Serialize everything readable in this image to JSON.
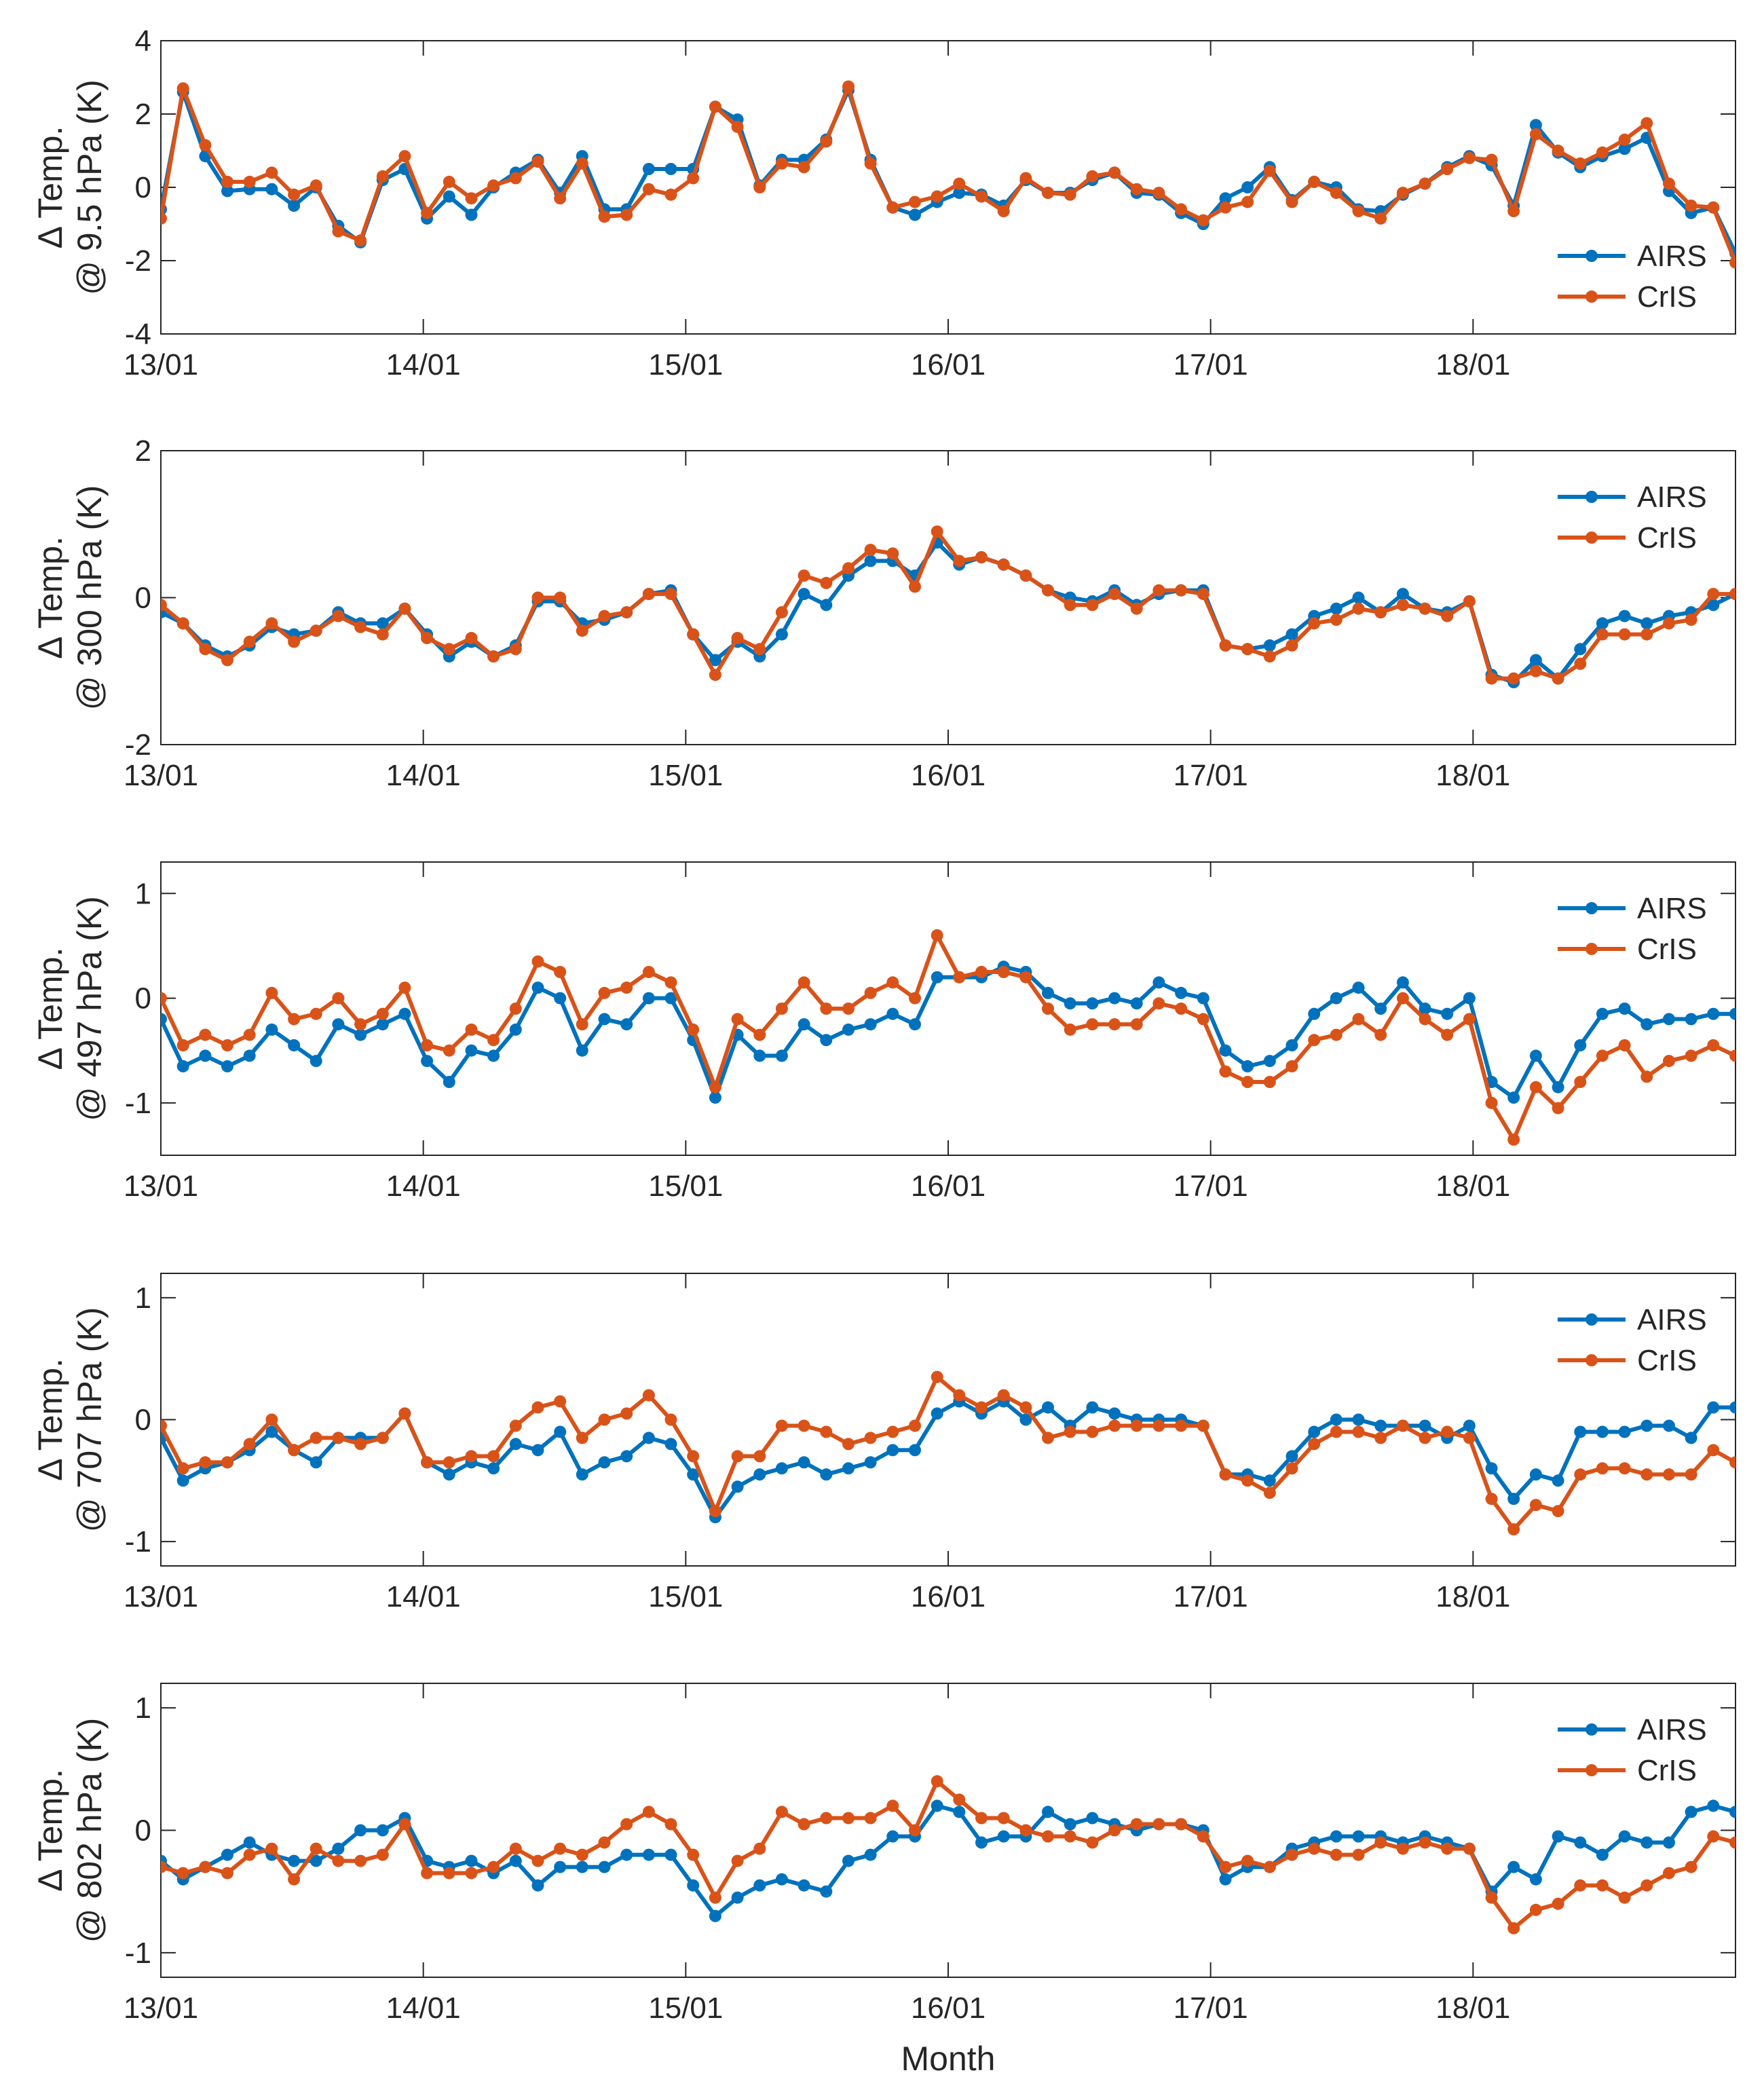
{
  "figure": {
    "xlabel": "Month",
    "series_names": [
      "AIRS",
      "CrIS"
    ],
    "colors": {
      "AIRS": "#0072BD",
      "CrIS": "#D95319",
      "axis": "#262626"
    },
    "x_tick_labels": [
      "13/01",
      "14/01",
      "15/01",
      "16/01",
      "17/01",
      "18/01"
    ],
    "x_tick_months": [
      0,
      12,
      24,
      36,
      48,
      60
    ],
    "x_range": [
      0,
      72
    ]
  },
  "chart_data": [
    {
      "type": "line",
      "title": "",
      "ylabel_line1": "Δ Temp.",
      "ylabel_line2": "@ 9.5 hPa (K)",
      "ylim": [
        -4,
        4
      ],
      "yticks": [
        -4,
        -2,
        0,
        2,
        4
      ],
      "ytick_labels": [
        "-4",
        "-2",
        "0",
        "2",
        "4"
      ],
      "legend": "bottom-right",
      "xlabel": "",
      "series": [
        {
          "name": "AIRS",
          "values": [
            -0.6,
            2.6,
            0.85,
            -0.1,
            -0.05,
            -0.05,
            -0.5,
            0.0,
            -1.05,
            -1.5,
            0.2,
            0.5,
            -0.85,
            -0.25,
            -0.75,
            0.0,
            0.4,
            0.75,
            -0.15,
            0.85,
            -0.6,
            -0.6,
            0.5,
            0.5,
            0.5,
            2.2,
            1.85,
            0.05,
            0.75,
            0.75,
            1.3,
            2.65,
            0.75,
            -0.55,
            -0.75,
            -0.4,
            -0.15,
            -0.2,
            -0.5,
            0.2,
            -0.15,
            -0.15,
            0.2,
            0.4,
            -0.15,
            -0.2,
            -0.7,
            -1.0,
            -0.3,
            0.0,
            0.55,
            -0.35,
            0.15,
            0.0,
            -0.6,
            -0.65,
            -0.2,
            0.1,
            0.55,
            0.85,
            0.6,
            -0.5,
            1.7,
            0.95,
            0.55,
            0.85,
            1.05,
            1.35,
            -0.1,
            -0.7,
            -0.55,
            -1.8
          ]
        },
        {
          "name": "CrIS",
          "values": [
            -0.85,
            2.7,
            1.15,
            0.15,
            0.15,
            0.4,
            -0.2,
            0.05,
            -1.2,
            -1.45,
            0.3,
            0.85,
            -0.7,
            0.15,
            -0.3,
            0.05,
            0.25,
            0.7,
            -0.3,
            0.65,
            -0.8,
            -0.75,
            -0.05,
            -0.2,
            0.25,
            2.2,
            1.65,
            0.0,
            0.65,
            0.55,
            1.25,
            2.75,
            0.65,
            -0.55,
            -0.4,
            -0.25,
            0.1,
            -0.25,
            -0.65,
            0.25,
            -0.15,
            -0.2,
            0.3,
            0.4,
            -0.05,
            -0.15,
            -0.6,
            -0.9,
            -0.55,
            -0.4,
            0.45,
            -0.4,
            0.15,
            -0.15,
            -0.65,
            -0.85,
            -0.15,
            0.1,
            0.5,
            0.8,
            0.75,
            -0.65,
            1.45,
            1.0,
            0.65,
            0.95,
            1.3,
            1.75,
            0.1,
            -0.5,
            -0.55,
            -2.05
          ]
        }
      ]
    },
    {
      "type": "line",
      "title": "",
      "ylabel_line1": "Δ Temp.",
      "ylabel_line2": "@ 300 hPa (K)",
      "ylim": [
        -2,
        2
      ],
      "yticks": [
        -2,
        0,
        2
      ],
      "ytick_labels": [
        "-2",
        "0",
        "2"
      ],
      "legend": "top-right",
      "xlabel": "",
      "series": [
        {
          "name": "AIRS",
          "values": [
            -0.2,
            -0.35,
            -0.65,
            -0.8,
            -0.65,
            -0.4,
            -0.5,
            -0.45,
            -0.2,
            -0.35,
            -0.35,
            -0.15,
            -0.5,
            -0.8,
            -0.6,
            -0.8,
            -0.65,
            -0.05,
            -0.05,
            -0.35,
            -0.3,
            -0.2,
            0.05,
            0.1,
            -0.5,
            -0.85,
            -0.6,
            -0.8,
            -0.5,
            0.05,
            -0.1,
            0.3,
            0.5,
            0.5,
            0.3,
            0.75,
            0.45,
            0.55,
            0.45,
            0.3,
            0.1,
            0.0,
            -0.05,
            0.1,
            -0.1,
            0.05,
            0.1,
            0.1,
            -0.65,
            -0.7,
            -0.65,
            -0.5,
            -0.25,
            -0.15,
            0.0,
            -0.2,
            0.05,
            -0.15,
            -0.2,
            -0.05,
            -1.05,
            -1.15,
            -0.85,
            -1.1,
            -0.7,
            -0.35,
            -0.25,
            -0.35,
            -0.25,
            -0.2,
            -0.1,
            0.05
          ]
        },
        {
          "name": "CrIS",
          "values": [
            -0.1,
            -0.35,
            -0.7,
            -0.85,
            -0.6,
            -0.35,
            -0.6,
            -0.45,
            -0.25,
            -0.4,
            -0.5,
            -0.15,
            -0.55,
            -0.7,
            -0.55,
            -0.8,
            -0.7,
            0.0,
            0.0,
            -0.45,
            -0.25,
            -0.2,
            0.05,
            0.05,
            -0.5,
            -1.05,
            -0.55,
            -0.7,
            -0.2,
            0.3,
            0.2,
            0.4,
            0.65,
            0.6,
            0.15,
            0.9,
            0.5,
            0.55,
            0.45,
            0.3,
            0.1,
            -0.1,
            -0.1,
            0.05,
            -0.15,
            0.1,
            0.1,
            0.05,
            -0.65,
            -0.7,
            -0.8,
            -0.65,
            -0.35,
            -0.3,
            -0.15,
            -0.2,
            -0.1,
            -0.15,
            -0.25,
            -0.05,
            -1.1,
            -1.1,
            -1.0,
            -1.1,
            -0.9,
            -0.5,
            -0.5,
            -0.5,
            -0.35,
            -0.3,
            0.05,
            0.05
          ]
        }
      ]
    },
    {
      "type": "line",
      "title": "",
      "ylabel_line1": "Δ Temp.",
      "ylabel_line2": "@ 497 hPa (K)",
      "ylim": [
        -1.5,
        1.3
      ],
      "yticks": [
        -1,
        0,
        1
      ],
      "ytick_labels": [
        "-1",
        "0",
        "1"
      ],
      "legend": "top-right",
      "xlabel": "",
      "series": [
        {
          "name": "AIRS",
          "values": [
            -0.2,
            -0.65,
            -0.55,
            -0.65,
            -0.55,
            -0.3,
            -0.45,
            -0.6,
            -0.25,
            -0.35,
            -0.25,
            -0.15,
            -0.6,
            -0.8,
            -0.5,
            -0.55,
            -0.3,
            0.1,
            0.0,
            -0.5,
            -0.2,
            -0.25,
            0.0,
            0.0,
            -0.4,
            -0.95,
            -0.35,
            -0.55,
            -0.55,
            -0.25,
            -0.4,
            -0.3,
            -0.25,
            -0.15,
            -0.25,
            0.2,
            0.2,
            0.2,
            0.3,
            0.25,
            0.05,
            -0.05,
            -0.05,
            0.0,
            -0.05,
            0.15,
            0.05,
            0.0,
            -0.5,
            -0.65,
            -0.6,
            -0.45,
            -0.15,
            0.0,
            0.1,
            -0.1,
            0.15,
            -0.1,
            -0.15,
            0.0,
            -0.8,
            -0.95,
            -0.55,
            -0.85,
            -0.45,
            -0.15,
            -0.1,
            -0.25,
            -0.2,
            -0.2,
            -0.15,
            -0.15
          ]
        },
        {
          "name": "CrIS",
          "values": [
            0.0,
            -0.45,
            -0.35,
            -0.45,
            -0.35,
            0.05,
            -0.2,
            -0.15,
            0.0,
            -0.25,
            -0.15,
            0.1,
            -0.45,
            -0.5,
            -0.3,
            -0.4,
            -0.1,
            0.35,
            0.25,
            -0.25,
            0.05,
            0.1,
            0.25,
            0.15,
            -0.3,
            -0.85,
            -0.2,
            -0.35,
            -0.1,
            0.15,
            -0.1,
            -0.1,
            0.05,
            0.15,
            0.0,
            0.6,
            0.2,
            0.25,
            0.25,
            0.2,
            -0.1,
            -0.3,
            -0.25,
            -0.25,
            -0.25,
            -0.05,
            -0.1,
            -0.2,
            -0.7,
            -0.8,
            -0.8,
            -0.65,
            -0.4,
            -0.35,
            -0.2,
            -0.35,
            0.0,
            -0.2,
            -0.35,
            -0.2,
            -1.0,
            -1.35,
            -0.85,
            -1.05,
            -0.8,
            -0.55,
            -0.45,
            -0.75,
            -0.6,
            -0.55,
            -0.45,
            -0.55
          ]
        }
      ]
    },
    {
      "type": "line",
      "title": "",
      "ylabel_line1": "Δ Temp.",
      "ylabel_line2": "@ 707 hPa (K)",
      "ylim": [
        -1.2,
        1.2
      ],
      "yticks": [
        -1,
        0,
        1
      ],
      "ytick_labels": [
        "-1",
        "0",
        "1"
      ],
      "legend": "top-right",
      "xlabel": "",
      "series": [
        {
          "name": "AIRS",
          "values": [
            -0.15,
            -0.5,
            -0.4,
            -0.35,
            -0.25,
            -0.1,
            -0.25,
            -0.35,
            -0.15,
            -0.15,
            -0.15,
            0.05,
            -0.35,
            -0.45,
            -0.35,
            -0.4,
            -0.2,
            -0.25,
            -0.1,
            -0.45,
            -0.35,
            -0.3,
            -0.15,
            -0.2,
            -0.45,
            -0.8,
            -0.55,
            -0.45,
            -0.4,
            -0.35,
            -0.45,
            -0.4,
            -0.35,
            -0.25,
            -0.25,
            0.05,
            0.15,
            0.05,
            0.15,
            0.0,
            0.1,
            -0.05,
            0.1,
            0.05,
            0.0,
            0.0,
            0.0,
            -0.05,
            -0.45,
            -0.45,
            -0.5,
            -0.3,
            -0.1,
            0.0,
            0.0,
            -0.05,
            -0.05,
            -0.05,
            -0.15,
            -0.05,
            -0.4,
            -0.65,
            -0.45,
            -0.5,
            -0.1,
            -0.1,
            -0.1,
            -0.05,
            -0.05,
            -0.15,
            0.1,
            0.1
          ]
        },
        {
          "name": "CrIS",
          "values": [
            -0.05,
            -0.4,
            -0.35,
            -0.35,
            -0.2,
            0.0,
            -0.25,
            -0.15,
            -0.15,
            -0.2,
            -0.15,
            0.05,
            -0.35,
            -0.35,
            -0.3,
            -0.3,
            -0.05,
            0.1,
            0.15,
            -0.15,
            0.0,
            0.05,
            0.2,
            0.0,
            -0.3,
            -0.75,
            -0.3,
            -0.3,
            -0.05,
            -0.05,
            -0.1,
            -0.2,
            -0.15,
            -0.1,
            -0.05,
            0.35,
            0.2,
            0.1,
            0.2,
            0.1,
            -0.15,
            -0.1,
            -0.1,
            -0.05,
            -0.05,
            -0.05,
            -0.05,
            -0.05,
            -0.45,
            -0.5,
            -0.6,
            -0.4,
            -0.2,
            -0.1,
            -0.1,
            -0.15,
            -0.05,
            -0.15,
            -0.1,
            -0.15,
            -0.65,
            -0.9,
            -0.7,
            -0.75,
            -0.45,
            -0.4,
            -0.4,
            -0.45,
            -0.45,
            -0.45,
            -0.25,
            -0.35
          ]
        }
      ]
    },
    {
      "type": "line",
      "title": "",
      "ylabel_line1": "Δ Temp.",
      "ylabel_line2": "@ 802 hPa (K)",
      "ylim": [
        -1.2,
        1.2
      ],
      "yticks": [
        -1,
        0,
        1
      ],
      "ytick_labels": [
        "-1",
        "0",
        "1"
      ],
      "legend": "top-right",
      "xlabel": "Month",
      "series": [
        {
          "name": "AIRS",
          "values": [
            -0.25,
            -0.4,
            -0.3,
            -0.2,
            -0.1,
            -0.2,
            -0.25,
            -0.25,
            -0.15,
            0.0,
            0.0,
            0.1,
            -0.25,
            -0.3,
            -0.25,
            -0.35,
            -0.25,
            -0.45,
            -0.3,
            -0.3,
            -0.3,
            -0.2,
            -0.2,
            -0.2,
            -0.45,
            -0.7,
            -0.55,
            -0.45,
            -0.4,
            -0.45,
            -0.5,
            -0.25,
            -0.2,
            -0.05,
            -0.05,
            0.2,
            0.15,
            -0.1,
            -0.05,
            -0.05,
            0.15,
            0.05,
            0.1,
            0.05,
            0.0,
            0.05,
            0.05,
            0.0,
            -0.4,
            -0.3,
            -0.3,
            -0.15,
            -0.1,
            -0.05,
            -0.05,
            -0.05,
            -0.1,
            -0.05,
            -0.1,
            -0.15,
            -0.5,
            -0.3,
            -0.4,
            -0.05,
            -0.1,
            -0.2,
            -0.05,
            -0.1,
            -0.1,
            0.15,
            0.2,
            0.15
          ]
        },
        {
          "name": "CrIS",
          "values": [
            -0.3,
            -0.35,
            -0.3,
            -0.35,
            -0.2,
            -0.15,
            -0.4,
            -0.15,
            -0.25,
            -0.25,
            -0.2,
            0.05,
            -0.35,
            -0.35,
            -0.35,
            -0.3,
            -0.15,
            -0.25,
            -0.15,
            -0.2,
            -0.1,
            0.05,
            0.15,
            0.05,
            -0.2,
            -0.55,
            -0.25,
            -0.15,
            0.15,
            0.05,
            0.1,
            0.1,
            0.1,
            0.2,
            0.0,
            0.4,
            0.25,
            0.1,
            0.1,
            0.0,
            -0.05,
            -0.05,
            -0.1,
            0.0,
            0.05,
            0.05,
            0.05,
            -0.05,
            -0.3,
            -0.25,
            -0.3,
            -0.2,
            -0.15,
            -0.2,
            -0.2,
            -0.1,
            -0.15,
            -0.1,
            -0.15,
            -0.15,
            -0.55,
            -0.8,
            -0.65,
            -0.6,
            -0.45,
            -0.45,
            -0.55,
            -0.45,
            -0.35,
            -0.3,
            -0.05,
            -0.1
          ]
        }
      ]
    }
  ]
}
